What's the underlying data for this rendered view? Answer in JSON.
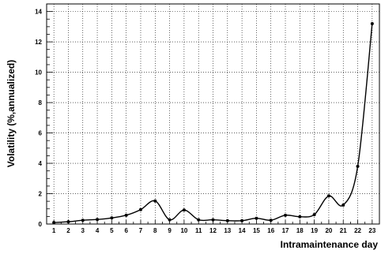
{
  "chart_data": {
    "type": "line",
    "xlabel": "Intramaintenance day",
    "ylabel": "Volatility (%,annualized)",
    "x": [
      1,
      2,
      3,
      4,
      5,
      6,
      7,
      8,
      9,
      10,
      11,
      12,
      13,
      14,
      15,
      16,
      17,
      18,
      19,
      20,
      21,
      22,
      23
    ],
    "series": [
      {
        "values": [
          0.1,
          0.15,
          0.25,
          0.3,
          0.4,
          0.58,
          0.95,
          1.52,
          0.28,
          0.92,
          0.28,
          0.28,
          0.22,
          0.22,
          0.38,
          0.25,
          0.58,
          0.48,
          0.62,
          1.85,
          1.25,
          3.8,
          13.2
        ]
      }
    ],
    "xticks": [
      "1",
      "2",
      "3",
      "4",
      "5",
      "6",
      "7",
      "8",
      "9",
      "10",
      "11",
      "12",
      "13",
      "14",
      "15",
      "16",
      "17",
      "18",
      "19",
      "20",
      "21",
      "22",
      "23"
    ],
    "yticks": [
      "0",
      "2",
      "4",
      "6",
      "8",
      "10",
      "12",
      "14"
    ],
    "xlim": [
      0.5,
      23.5
    ],
    "ylim": [
      0,
      14.5
    ],
    "grid": true,
    "legend": "none",
    "colors": {
      "line": "#000000",
      "grid": "#000000",
      "background": "#ffffff"
    }
  }
}
